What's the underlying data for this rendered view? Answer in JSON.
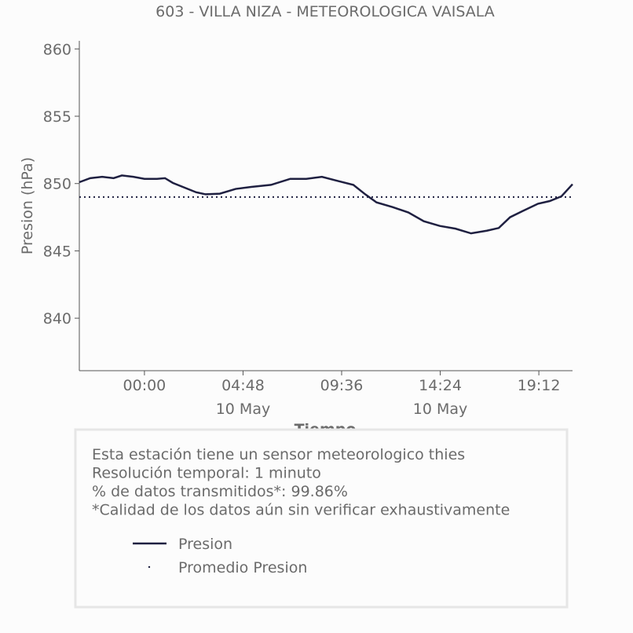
{
  "chart_data": {
    "type": "line",
    "title": "603 - VILLA NIZA - METEOROLOGICA VAISALA",
    "ylabel": "Presion (hPa)",
    "xlabel": "Tiempo",
    "x": [
      -3.17,
      -2.64,
      -2.06,
      -1.5,
      -1.1,
      -0.54,
      0,
      0.61,
      1.0,
      1.38,
      1.95,
      2.52,
      2.98,
      3.67,
      4.44,
      5.2,
      6.16,
      7.1,
      7.88,
      8.64,
      9.4,
      10.17,
      10.75,
      11.3,
      12.08,
      12.85,
      13.6,
      14.38,
      15.14,
      15.9,
      16.67,
      17.25,
      17.8,
      18.4,
      19.16,
      19.73,
      20.3,
      20.84
    ],
    "series": [
      {
        "name": "Presion",
        "color": "#1f2041",
        "values": [
          850.1,
          850.4,
          850.5,
          850.4,
          850.6,
          850.5,
          850.35,
          850.35,
          850.4,
          850.05,
          849.7,
          849.35,
          849.2,
          849.25,
          849.6,
          849.75,
          849.9,
          850.35,
          850.35,
          850.5,
          850.2,
          849.9,
          849.2,
          848.6,
          848.25,
          847.85,
          847.2,
          846.85,
          846.65,
          846.3,
          846.5,
          846.7,
          847.5,
          847.95,
          848.5,
          848.7,
          849.05,
          849.95
        ]
      }
    ],
    "average": {
      "name": "Promedio Presion",
      "color": "#1f2041",
      "value": 849.0
    },
    "xlim": [
      -3.17,
      20.84
    ],
    "xticks": [
      {
        "value": 0,
        "label": "00:00"
      },
      {
        "value": 4.8,
        "label": "04:48\n10 May"
      },
      {
        "value": 9.6,
        "label": "09:36"
      },
      {
        "value": 14.4,
        "label": "14:24\n10 May"
      },
      {
        "value": 19.2,
        "label": "19:12"
      }
    ],
    "ylim": [
      836.1,
      860.6
    ],
    "yticks": [
      840,
      845,
      850,
      855,
      860
    ],
    "notes": [
      "Esta estación tiene un sensor meteorologico thies",
      "Resolución temporal: 1 minuto",
      "% de datos transmitidos*: 99.86%",
      "*Calidad de los datos aún sin verificar exhaustivamente"
    ]
  }
}
